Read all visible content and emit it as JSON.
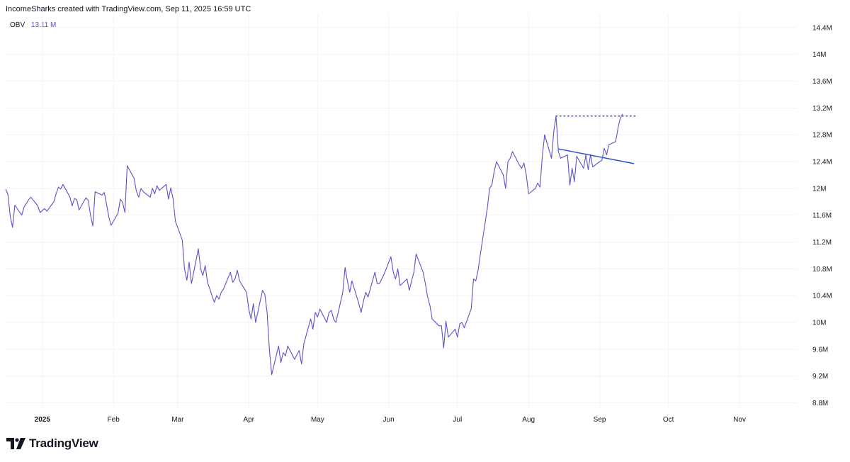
{
  "header": {
    "title": "IncomeSharks created with TradingView.com, Sep 11, 2025 16:59 UTC"
  },
  "legend": {
    "indicator": "OBV",
    "value": "13.11 M"
  },
  "branding": {
    "logo_text": "TradingView"
  },
  "colors": {
    "series": "#5b52c7",
    "trendline": "#3456d1",
    "grid": "#f0f3fa",
    "text": "#131722"
  },
  "chart_data": {
    "type": "line",
    "title": "",
    "xlabel": "",
    "ylabel": "",
    "ylim": [
      8.7,
      14.6
    ],
    "y_ticks": [
      {
        "value": 8.8,
        "label": "8.8M"
      },
      {
        "value": 9.2,
        "label": "9.2M"
      },
      {
        "value": 9.6,
        "label": "9.6M"
      },
      {
        "value": 10.0,
        "label": "10M"
      },
      {
        "value": 10.4,
        "label": "10.4M"
      },
      {
        "value": 10.8,
        "label": "10.8M"
      },
      {
        "value": 11.2,
        "label": "11.2M"
      },
      {
        "value": 11.6,
        "label": "11.6M"
      },
      {
        "value": 12.0,
        "label": "12M"
      },
      {
        "value": 12.4,
        "label": "12.4M"
      },
      {
        "value": 12.8,
        "label": "12.8M"
      },
      {
        "value": 13.2,
        "label": "13.2M"
      },
      {
        "value": 13.6,
        "label": "13.6M"
      },
      {
        "value": 14.0,
        "label": "14M"
      },
      {
        "value": 14.4,
        "label": "14.4M"
      }
    ],
    "x_ticks": [
      {
        "date": "2025-01-01",
        "label": "2025",
        "bold": true
      },
      {
        "date": "2025-02-01",
        "label": "Feb"
      },
      {
        "date": "2025-03-01",
        "label": "Mar"
      },
      {
        "date": "2025-04-01",
        "label": "Apr"
      },
      {
        "date": "2025-05-01",
        "label": "May"
      },
      {
        "date": "2025-06-01",
        "label": "Jun"
      },
      {
        "date": "2025-07-01",
        "label": "Jul"
      },
      {
        "date": "2025-08-01",
        "label": "Aug"
      },
      {
        "date": "2025-09-01",
        "label": "Sep"
      },
      {
        "date": "2025-10-01",
        "label": "Oct"
      },
      {
        "date": "2025-11-01",
        "label": "Nov"
      }
    ],
    "xlim": [
      "2024-12-16",
      "2025-11-26"
    ],
    "series": [
      {
        "points": [
          [
            "2024-12-16",
            11.99
          ],
          [
            "2024-12-17",
            11.91
          ],
          [
            "2024-12-18",
            11.58
          ],
          [
            "2024-12-19",
            11.42
          ],
          [
            "2024-12-20",
            11.75
          ],
          [
            "2024-12-23",
            11.6
          ],
          [
            "2024-12-24",
            11.72
          ],
          [
            "2024-12-26",
            11.83
          ],
          [
            "2024-12-27",
            11.87
          ],
          [
            "2024-12-30",
            11.74
          ],
          [
            "2024-12-31",
            11.64
          ],
          [
            "2025-01-02",
            11.7
          ],
          [
            "2025-01-03",
            11.66
          ],
          [
            "2025-01-06",
            11.8
          ],
          [
            "2025-01-07",
            11.92
          ],
          [
            "2025-01-08",
            12.02
          ],
          [
            "2025-01-09",
            11.99
          ],
          [
            "2025-01-10",
            12.06
          ],
          [
            "2025-01-13",
            11.87
          ],
          [
            "2025-01-14",
            11.74
          ],
          [
            "2025-01-15",
            11.85
          ],
          [
            "2025-01-16",
            11.83
          ],
          [
            "2025-01-17",
            11.68
          ],
          [
            "2025-01-20",
            11.86
          ],
          [
            "2025-01-21",
            11.82
          ],
          [
            "2025-01-22",
            11.6
          ],
          [
            "2025-01-23",
            11.44
          ],
          [
            "2025-01-24",
            11.95
          ],
          [
            "2025-01-27",
            11.9
          ],
          [
            "2025-01-28",
            11.94
          ],
          [
            "2025-01-29",
            11.76
          ],
          [
            "2025-01-30",
            11.57
          ],
          [
            "2025-01-31",
            11.45
          ],
          [
            "2025-02-03",
            11.63
          ],
          [
            "2025-02-04",
            11.84
          ],
          [
            "2025-02-05",
            11.79
          ],
          [
            "2025-02-06",
            11.64
          ],
          [
            "2025-02-07",
            12.34
          ],
          [
            "2025-02-10",
            12.15
          ],
          [
            "2025-02-11",
            11.96
          ],
          [
            "2025-02-12",
            11.87
          ],
          [
            "2025-02-13",
            12.0
          ],
          [
            "2025-02-14",
            11.95
          ],
          [
            "2025-02-17",
            11.87
          ],
          [
            "2025-02-18",
            12.0
          ],
          [
            "2025-02-19",
            11.92
          ],
          [
            "2025-02-20",
            12.04
          ],
          [
            "2025-02-21",
            11.97
          ],
          [
            "2025-02-24",
            12.06
          ],
          [
            "2025-02-25",
            11.84
          ],
          [
            "2025-02-26",
            12.01
          ],
          [
            "2025-02-27",
            11.84
          ],
          [
            "2025-02-28",
            11.51
          ],
          [
            "2025-03-03",
            11.23
          ],
          [
            "2025-03-04",
            10.8
          ],
          [
            "2025-03-05",
            10.63
          ],
          [
            "2025-03-06",
            10.9
          ],
          [
            "2025-03-07",
            10.58
          ],
          [
            "2025-03-10",
            11.1
          ],
          [
            "2025-03-11",
            10.8
          ],
          [
            "2025-03-12",
            10.7
          ],
          [
            "2025-03-13",
            10.85
          ],
          [
            "2025-03-14",
            10.6
          ],
          [
            "2025-03-17",
            10.3
          ],
          [
            "2025-03-18",
            10.4
          ],
          [
            "2025-03-19",
            10.35
          ],
          [
            "2025-03-20",
            10.45
          ],
          [
            "2025-03-21",
            10.5
          ],
          [
            "2025-03-24",
            10.75
          ],
          [
            "2025-03-25",
            10.6
          ],
          [
            "2025-03-26",
            10.65
          ],
          [
            "2025-03-27",
            10.78
          ],
          [
            "2025-03-28",
            10.62
          ],
          [
            "2025-03-31",
            10.45
          ],
          [
            "2025-04-01",
            10.2
          ],
          [
            "2025-04-02",
            10.05
          ],
          [
            "2025-04-03",
            10.28
          ],
          [
            "2025-04-04",
            10.0
          ],
          [
            "2025-04-07",
            10.48
          ],
          [
            "2025-04-08",
            10.42
          ],
          [
            "2025-04-09",
            10.15
          ],
          [
            "2025-04-10",
            9.6
          ],
          [
            "2025-04-11",
            9.22
          ],
          [
            "2025-04-14",
            9.65
          ],
          [
            "2025-04-15",
            9.4
          ],
          [
            "2025-04-16",
            9.55
          ],
          [
            "2025-04-17",
            9.5
          ],
          [
            "2025-04-18",
            9.65
          ],
          [
            "2025-04-21",
            9.45
          ],
          [
            "2025-04-22",
            9.52
          ],
          [
            "2025-04-23",
            9.58
          ],
          [
            "2025-04-24",
            9.38
          ],
          [
            "2025-04-25",
            9.68
          ],
          [
            "2025-04-28",
            10.05
          ],
          [
            "2025-04-29",
            9.9
          ],
          [
            "2025-04-30",
            10.15
          ],
          [
            "2025-05-01",
            10.08
          ],
          [
            "2025-05-02",
            10.2
          ],
          [
            "2025-05-05",
            10.0
          ],
          [
            "2025-05-06",
            10.15
          ],
          [
            "2025-05-07",
            10.18
          ],
          [
            "2025-05-08",
            10.05
          ],
          [
            "2025-05-09",
            10.0
          ],
          [
            "2025-05-12",
            10.45
          ],
          [
            "2025-05-13",
            10.82
          ],
          [
            "2025-05-14",
            10.62
          ],
          [
            "2025-05-15",
            10.45
          ],
          [
            "2025-05-16",
            10.62
          ],
          [
            "2025-05-19",
            10.28
          ],
          [
            "2025-05-20",
            10.15
          ],
          [
            "2025-05-21",
            10.32
          ],
          [
            "2025-05-22",
            10.45
          ],
          [
            "2025-05-23",
            10.38
          ],
          [
            "2025-05-26",
            10.75
          ],
          [
            "2025-05-27",
            10.58
          ],
          [
            "2025-05-28",
            10.58
          ],
          [
            "2025-05-29",
            10.65
          ],
          [
            "2025-05-30",
            10.72
          ],
          [
            "2025-06-02",
            10.98
          ],
          [
            "2025-06-03",
            10.75
          ],
          [
            "2025-06-04",
            10.65
          ],
          [
            "2025-06-05",
            10.8
          ],
          [
            "2025-06-06",
            10.55
          ],
          [
            "2025-06-09",
            10.65
          ],
          [
            "2025-06-10",
            10.48
          ],
          [
            "2025-06-11",
            10.62
          ],
          [
            "2025-06-12",
            10.75
          ],
          [
            "2025-06-13",
            11.02
          ],
          [
            "2025-06-16",
            10.75
          ],
          [
            "2025-06-17",
            10.58
          ],
          [
            "2025-06-18",
            10.38
          ],
          [
            "2025-06-19",
            10.25
          ],
          [
            "2025-06-20",
            10.05
          ],
          [
            "2025-06-23",
            9.95
          ],
          [
            "2025-06-24",
            9.95
          ],
          [
            "2025-06-25",
            9.62
          ],
          [
            "2025-06-26",
            10.02
          ],
          [
            "2025-06-27",
            9.78
          ],
          [
            "2025-06-30",
            9.9
          ],
          [
            "2025-07-01",
            9.78
          ],
          [
            "2025-07-02",
            9.98
          ],
          [
            "2025-07-03",
            10.0
          ],
          [
            "2025-07-04",
            9.92
          ],
          [
            "2025-07-07",
            10.2
          ],
          [
            "2025-07-08",
            10.65
          ],
          [
            "2025-07-09",
            10.62
          ],
          [
            "2025-07-10",
            10.78
          ],
          [
            "2025-07-11",
            11.02
          ],
          [
            "2025-07-14",
            11.7
          ],
          [
            "2025-07-15",
            12.0
          ],
          [
            "2025-07-16",
            12.05
          ],
          [
            "2025-07-17",
            12.25
          ],
          [
            "2025-07-18",
            12.4
          ],
          [
            "2025-07-21",
            12.2
          ],
          [
            "2025-07-22",
            12.0
          ],
          [
            "2025-07-23",
            12.4
          ],
          [
            "2025-07-24",
            12.45
          ],
          [
            "2025-07-25",
            12.55
          ],
          [
            "2025-07-28",
            12.35
          ],
          [
            "2025-07-29",
            12.3
          ],
          [
            "2025-07-30",
            12.38
          ],
          [
            "2025-07-31",
            12.2
          ],
          [
            "2025-08-01",
            11.92
          ],
          [
            "2025-08-04",
            12.0
          ],
          [
            "2025-08-05",
            12.08
          ],
          [
            "2025-08-06",
            12.02
          ],
          [
            "2025-08-07",
            12.48
          ],
          [
            "2025-08-08",
            12.8
          ],
          [
            "2025-08-11",
            12.45
          ],
          [
            "2025-08-12",
            12.85
          ],
          [
            "2025-08-13",
            13.08
          ],
          [
            "2025-08-14",
            12.55
          ],
          [
            "2025-08-15",
            12.45
          ],
          [
            "2025-08-18",
            12.5
          ],
          [
            "2025-08-19",
            12.05
          ],
          [
            "2025-08-20",
            12.3
          ],
          [
            "2025-08-21",
            12.1
          ],
          [
            "2025-08-22",
            12.48
          ],
          [
            "2025-08-25",
            12.3
          ],
          [
            "2025-08-26",
            12.5
          ],
          [
            "2025-08-27",
            12.28
          ],
          [
            "2025-08-28",
            12.5
          ],
          [
            "2025-08-29",
            12.32
          ],
          [
            "2025-09-01",
            12.4
          ],
          [
            "2025-09-02",
            12.42
          ],
          [
            "2025-09-03",
            12.6
          ],
          [
            "2025-09-04",
            12.5
          ],
          [
            "2025-09-05",
            12.65
          ],
          [
            "2025-09-08",
            12.7
          ],
          [
            "2025-09-09",
            12.9
          ],
          [
            "2025-09-10",
            13.05
          ],
          [
            "2025-09-11",
            13.11
          ]
        ]
      }
    ],
    "annotations": [
      {
        "type": "horizontal-dotted",
        "from": "2025-08-13",
        "to": "2025-09-17",
        "value": 13.08
      },
      {
        "type": "trendline",
        "from": [
          "2025-08-14",
          12.59
        ],
        "to": [
          "2025-09-16",
          12.37
        ]
      }
    ]
  }
}
